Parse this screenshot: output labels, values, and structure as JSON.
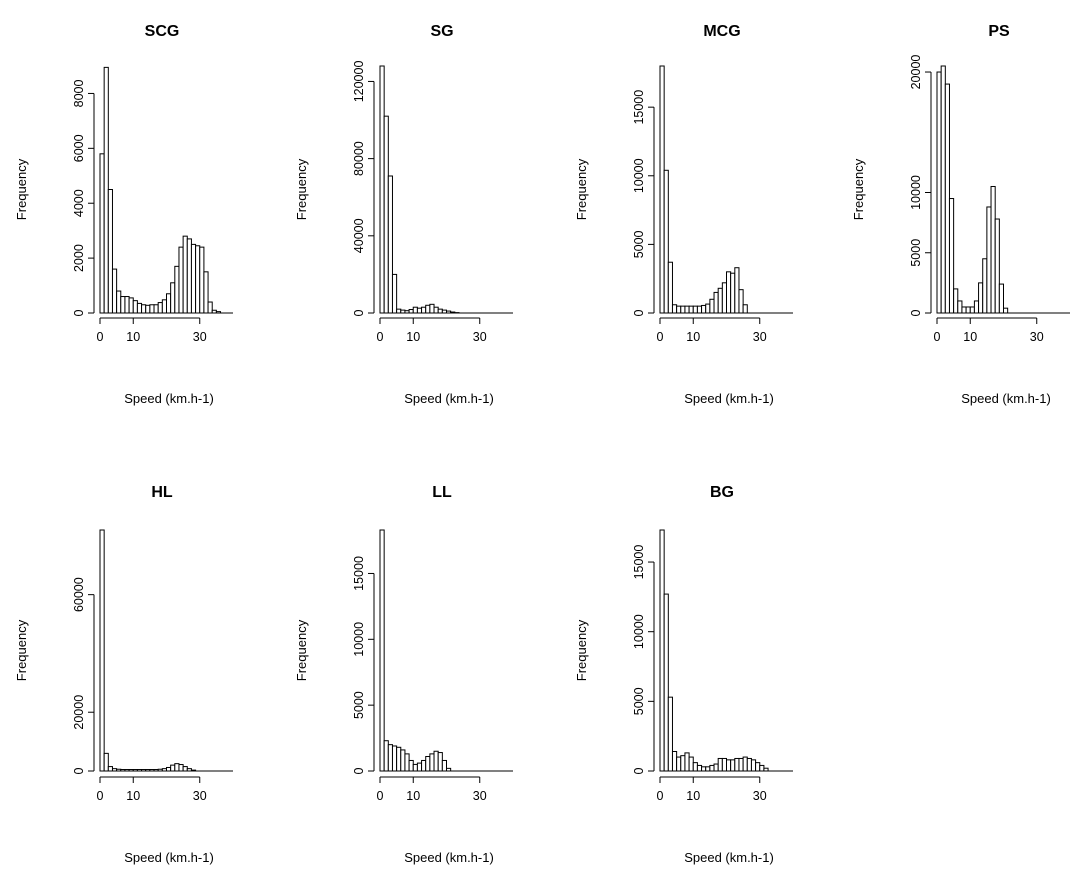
{
  "chart_data": [
    {
      "type": "bar",
      "title": "SCG",
      "xlabel": "Speed (km.h-1)",
      "ylabel": "Frequency",
      "bin_width": 1.25,
      "xlim": [
        0,
        40
      ],
      "ylim": [
        0,
        9000
      ],
      "xticks": [
        0,
        10,
        30
      ],
      "yticks": [
        0,
        2000,
        4000,
        6000,
        8000
      ],
      "values": [
        5800,
        8950,
        4500,
        1600,
        800,
        600,
        600,
        550,
        450,
        350,
        300,
        280,
        300,
        300,
        380,
        480,
        700,
        1100,
        1700,
        2400,
        2800,
        2700,
        2500,
        2450,
        2400,
        1500,
        400,
        100,
        50,
        0,
        0,
        0
      ]
    },
    {
      "type": "bar",
      "title": "SG",
      "xlabel": "Speed (km.h-1)",
      "ylabel": "Frequency",
      "bin_width": 1.25,
      "xlim": [
        0,
        40
      ],
      "ylim": [
        0,
        128000
      ],
      "xticks": [
        0,
        10,
        30
      ],
      "yticks": [
        0,
        40000,
        80000,
        120000
      ],
      "values": [
        128000,
        102000,
        71000,
        20000,
        2000,
        1500,
        1200,
        1800,
        3000,
        2500,
        3000,
        4000,
        4500,
        3000,
        2000,
        1500,
        1000,
        500,
        200,
        0,
        0,
        0,
        0,
        0,
        0,
        0,
        0,
        0,
        0,
        0,
        0,
        0
      ]
    },
    {
      "type": "bar",
      "title": "MCG",
      "xlabel": "Speed (km.h-1)",
      "ylabel": "Frequency",
      "bin_width": 1.25,
      "xlim": [
        0,
        40
      ],
      "ylim": [
        0,
        18000
      ],
      "xticks": [
        0,
        10,
        30
      ],
      "yticks": [
        0,
        5000,
        10000,
        15000
      ],
      "values": [
        18000,
        10400,
        3700,
        600,
        500,
        500,
        500,
        500,
        500,
        500,
        550,
        650,
        1000,
        1500,
        1800,
        2200,
        3000,
        2900,
        3300,
        1700,
        600,
        0,
        0,
        0,
        0,
        0,
        0,
        0,
        0,
        0,
        0,
        0
      ]
    },
    {
      "type": "bar",
      "title": "PS",
      "xlabel": "Speed (km.h-1)",
      "ylabel": "Frequency",
      "bin_width": 1.25,
      "xlim": [
        0,
        40
      ],
      "ylim": [
        0,
        20500
      ],
      "xticks": [
        0,
        10,
        30
      ],
      "yticks": [
        0,
        5000,
        10000,
        20000
      ],
      "values": [
        20000,
        20500,
        19000,
        9500,
        2000,
        1000,
        500,
        500,
        500,
        1000,
        2500,
        4500,
        8800,
        10500,
        7800,
        2400,
        400,
        0,
        0,
        0,
        0,
        0,
        0,
        0,
        0,
        0,
        0,
        0,
        0,
        0,
        0,
        0
      ]
    },
    {
      "type": "bar",
      "title": "HL",
      "xlabel": "Speed (km.h-1)",
      "ylabel": "Frequency",
      "bin_width": 1.25,
      "xlim": [
        0,
        40
      ],
      "ylim": [
        0,
        82000
      ],
      "xticks": [
        0,
        10,
        30
      ],
      "yticks": [
        0,
        20000,
        60000
      ],
      "values": [
        82000,
        6000,
        1500,
        800,
        600,
        500,
        500,
        500,
        500,
        500,
        500,
        500,
        500,
        500,
        600,
        800,
        1200,
        2000,
        2500,
        2200,
        1500,
        800,
        300,
        0,
        0,
        0,
        0,
        0,
        0,
        0,
        0,
        0
      ]
    },
    {
      "type": "bar",
      "title": "LL",
      "xlabel": "Speed (km.h-1)",
      "ylabel": "Frequency",
      "bin_width": 1.25,
      "xlim": [
        0,
        40
      ],
      "ylim": [
        0,
        18300
      ],
      "xticks": [
        0,
        10,
        30
      ],
      "yticks": [
        0,
        5000,
        10000,
        15000
      ],
      "values": [
        18300,
        2300,
        2000,
        1900,
        1800,
        1600,
        1300,
        800,
        500,
        600,
        800,
        1100,
        1300,
        1500,
        1400,
        800,
        200,
        0,
        0,
        0,
        0,
        0,
        0,
        0,
        0,
        0,
        0,
        0,
        0,
        0,
        0,
        0
      ]
    },
    {
      "type": "bar",
      "title": "BG",
      "xlabel": "Speed (km.h-1)",
      "ylabel": "Frequency",
      "bin_width": 1.25,
      "xlim": [
        0,
        40
      ],
      "ylim": [
        0,
        17300
      ],
      "xticks": [
        0,
        10,
        30
      ],
      "yticks": [
        0,
        5000,
        10000,
        15000
      ],
      "values": [
        17300,
        12700,
        5300,
        1400,
        1000,
        1100,
        1300,
        1000,
        600,
        400,
        300,
        300,
        400,
        500,
        900,
        900,
        800,
        800,
        900,
        900,
        1000,
        900,
        800,
        600,
        400,
        200,
        0,
        0,
        0,
        0,
        0,
        0
      ]
    }
  ]
}
